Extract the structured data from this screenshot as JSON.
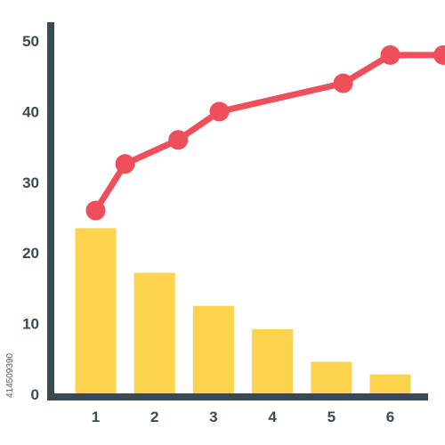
{
  "chart_data": {
    "type": "bar",
    "categories": [
      "1",
      "2",
      "3",
      "4",
      "5",
      "6"
    ],
    "series": [
      {
        "type": "bar",
        "values": [
          23.5,
          17.2,
          12.5,
          9.2,
          4.6,
          2.8
        ]
      },
      {
        "type": "line",
        "values": [
          26.0,
          32.6,
          36.0,
          40.0,
          44.0,
          48.0,
          48.0
        ],
        "x": [
          1,
          1.5,
          2.4,
          3.1,
          5.2,
          6.0,
          6.9
        ]
      }
    ],
    "yticks": [
      "0",
      "10",
      "20",
      "30",
      "40",
      "50"
    ],
    "ylim": [
      0,
      50
    ],
    "grid": false,
    "colors": {
      "bar": "#FCD34D",
      "line": "#EF4F5A",
      "axis": "#3A4A55",
      "text": "#3A4A55"
    }
  },
  "watermark": {
    "id_text": "414509390"
  }
}
